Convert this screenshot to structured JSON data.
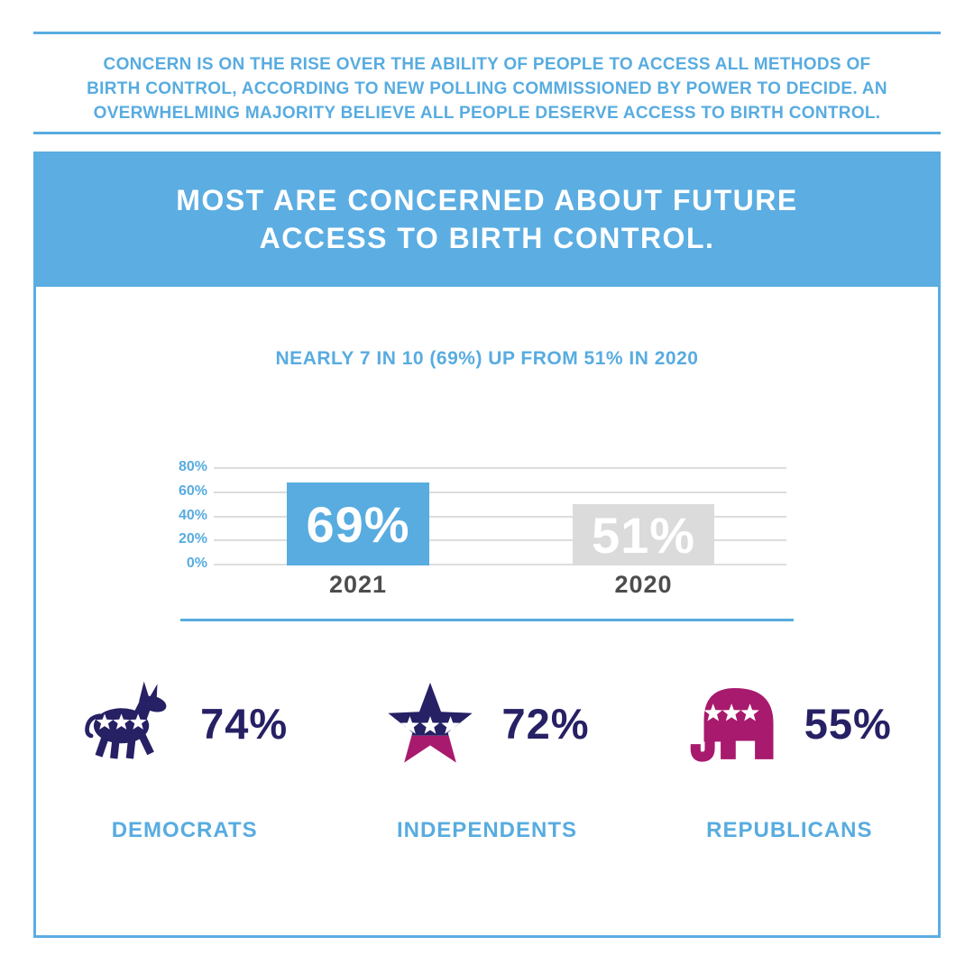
{
  "colors": {
    "blue": "#58ACE0",
    "banner_blue": "#5BADE2",
    "navy": "#262064",
    "magenta": "#A81A6D",
    "bar_gray": "#DBDBDB",
    "axis_label_gray": "#4D4D4D",
    "background": "#FFFFFF"
  },
  "intro": {
    "lines": [
      "CONCERN IS ON THE RISE OVER THE ABILITY OF PEOPLE TO ACCESS ALL METHODS OF",
      "BIRTH CONTROL, ACCORDING TO NEW POLLING COMMISSIONED BY POWER TO DECIDE. AN",
      "OVERWHELMING MAJORITY BELIEVE ALL PEOPLE DESERVE ACCESS TO BIRTH CONTROL."
    ]
  },
  "banner": {
    "lines": [
      "MOST ARE CONCERNED ABOUT FUTURE",
      "ACCESS TO BIRTH CONTROL."
    ]
  },
  "icons": {
    "democrats": "democrat-donkey-icon",
    "independents": "independent-star-icon",
    "republicans": "republican-elephant-icon"
  },
  "chart_data": [
    {
      "type": "bar",
      "title": "NEARLY 7 IN 10 (69%) UP FROM 51% IN 2020",
      "categories": [
        "2021",
        "2020"
      ],
      "values": [
        69,
        51
      ],
      "value_labels": [
        "69%",
        "51%"
      ],
      "bar_colors": [
        "#58ACE0",
        "#DBDBDB"
      ],
      "yticks": [
        80,
        60,
        40,
        20,
        0
      ],
      "ytick_labels": [
        "80%",
        "60%",
        "40%",
        "20%",
        "0%"
      ],
      "ylim": [
        0,
        80
      ],
      "grid": true,
      "legend": false
    },
    {
      "type": "table",
      "categories": [
        "DEMOCRATS",
        "INDEPENDENTS",
        "REPUBLICANS"
      ],
      "values": [
        74,
        72,
        55
      ],
      "value_labels": [
        "74%",
        "72%",
        "55%"
      ]
    }
  ]
}
